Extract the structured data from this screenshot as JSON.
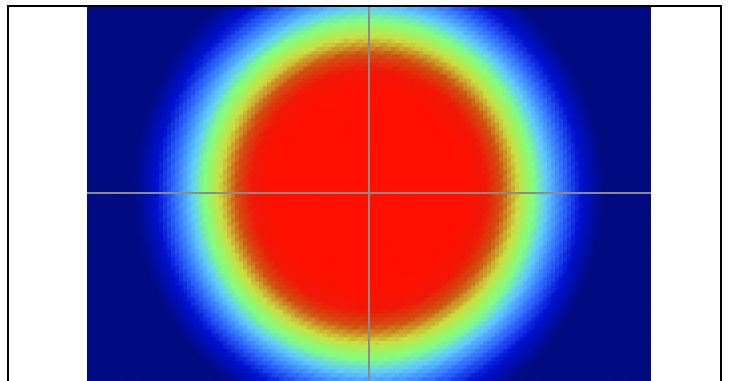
{
  "viewer": {
    "colormap": "jet",
    "background_color": "#ffffff",
    "frame_color": "#000000",
    "crosshair_color": "#8c8c8c",
    "visible_stops": [
      {
        "value": 0.0,
        "color": "#000b80"
      },
      {
        "value": 0.18,
        "color": "#0010d0"
      },
      {
        "value": 0.32,
        "color": "#2f6bff"
      },
      {
        "value": 0.45,
        "color": "#5fc8ff"
      },
      {
        "value": 0.55,
        "color": "#80ff80"
      },
      {
        "value": 0.66,
        "color": "#c8e040"
      },
      {
        "value": 0.78,
        "color": "#d05010"
      },
      {
        "value": 0.88,
        "color": "#f01808"
      },
      {
        "value": 1.0,
        "color": "#ff1000"
      }
    ]
  }
}
